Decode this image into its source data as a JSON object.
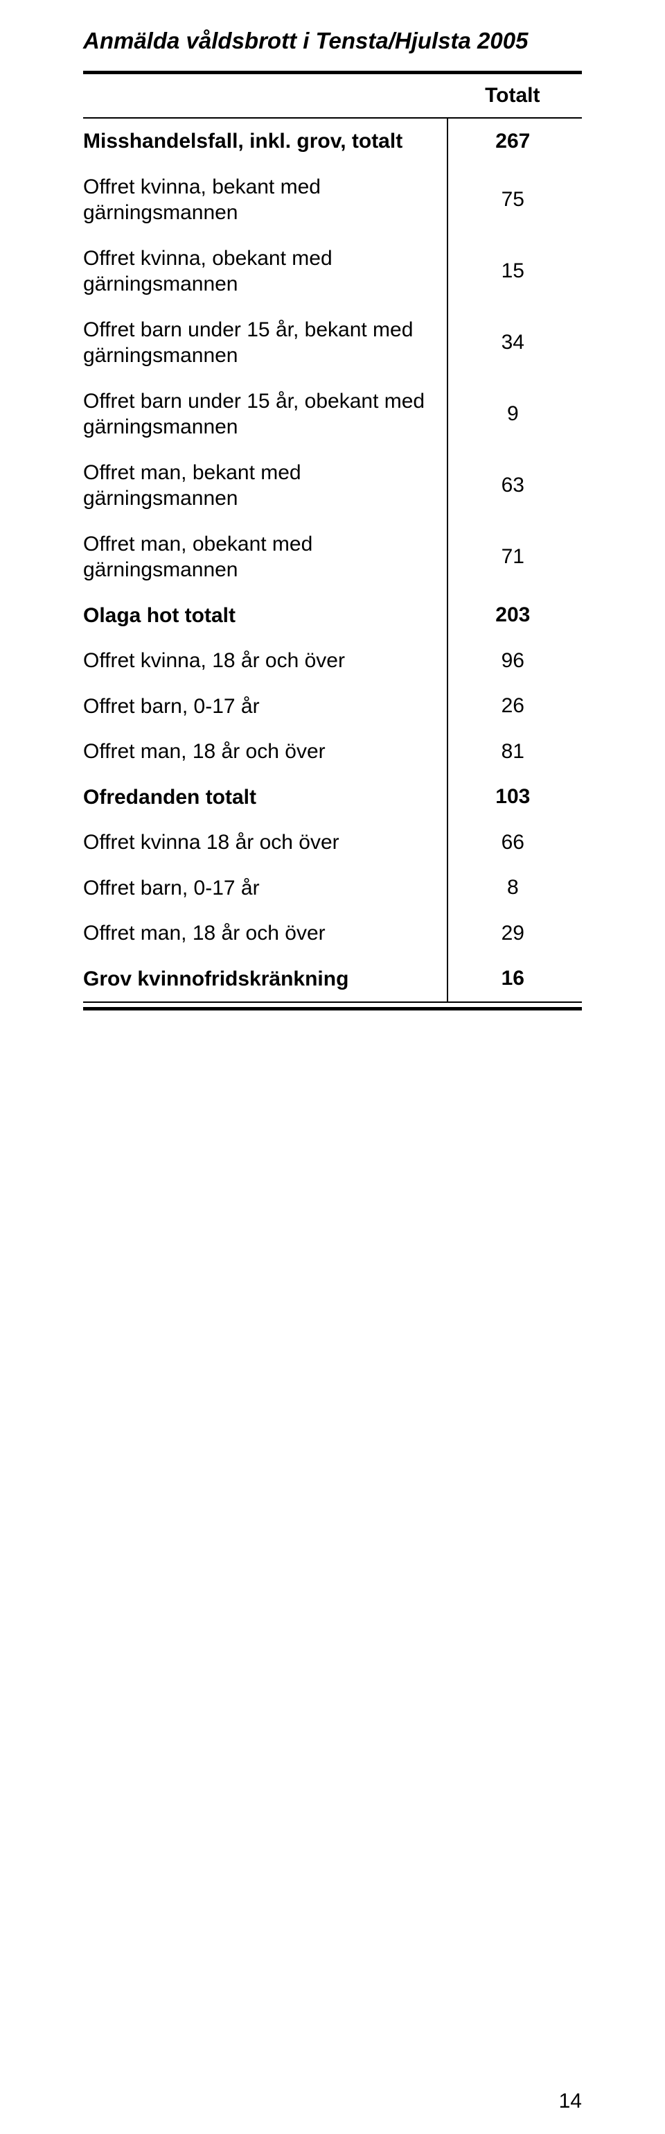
{
  "title": "Anmälda våldsbrott i Tensta/Hjulsta 2005",
  "header_total": "Totalt",
  "page_number": "14",
  "rows": [
    {
      "label": "Misshandelsfall, inkl. grov, totalt",
      "value": "267",
      "bold": true
    },
    {
      "label": "Offret kvinna, bekant med gärningsmannen",
      "value": "75",
      "bold": false
    },
    {
      "label": "Offret kvinna, obekant med gärningsmannen",
      "value": "15",
      "bold": false
    },
    {
      "label": "Offret barn under 15 år, bekant med gärningsmannen",
      "value": "34",
      "bold": false
    },
    {
      "label": "Offret barn under 15 år, obekant med gärningsmannen",
      "value": "9",
      "bold": false
    },
    {
      "label": "Offret man, bekant med gärningsmannen",
      "value": "63",
      "bold": false
    },
    {
      "label": "Offret man, obekant med gärningsmannen",
      "value": "71",
      "bold": false
    },
    {
      "label": "Olaga hot totalt",
      "value": "203",
      "bold": true
    },
    {
      "label": "Offret kvinna, 18 år och över",
      "value": "96",
      "bold": false
    },
    {
      "label": "Offret barn, 0-17 år",
      "value": "26",
      "bold": false
    },
    {
      "label": "Offret man, 18 år och över",
      "value": "81",
      "bold": false
    },
    {
      "label": "Ofredanden totalt",
      "value": "103",
      "bold": true
    },
    {
      "label": "Offret kvinna 18 år och över",
      "value": "66",
      "bold": false
    },
    {
      "label": "Offret barn, 0-17 år",
      "value": "8",
      "bold": false
    },
    {
      "label": "Offret man, 18 år och över",
      "value": "29",
      "bold": false
    },
    {
      "label": "Grov kvinnofridskränkning",
      "value": "16",
      "bold": true
    }
  ]
}
